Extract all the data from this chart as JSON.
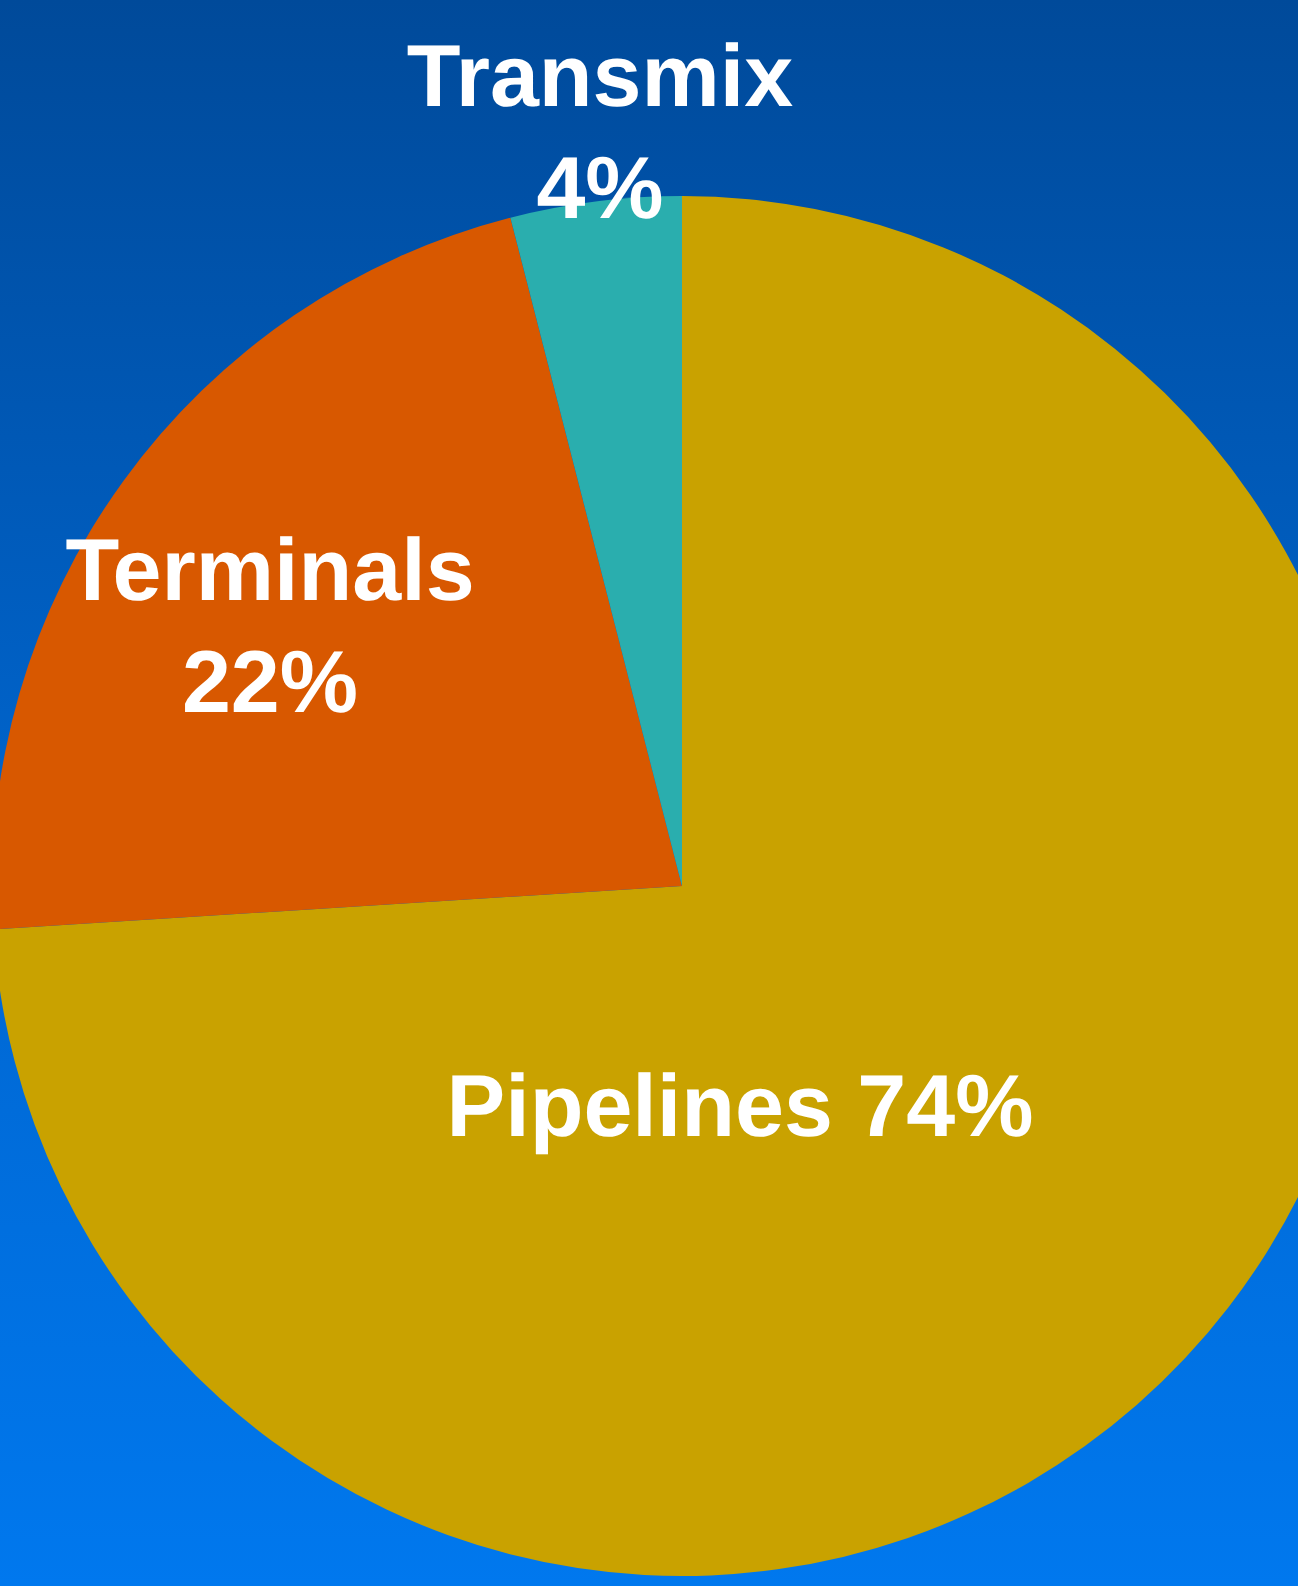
{
  "chart_data": {
    "type": "pie",
    "categories": [
      "Pipelines",
      "Terminals",
      "Transmix"
    ],
    "values": [
      74,
      22,
      4
    ],
    "value_labels": [
      "74%",
      "22%",
      "4%"
    ],
    "colors": [
      "#c9a200",
      "#d85800",
      "#2aaeae"
    ]
  }
}
